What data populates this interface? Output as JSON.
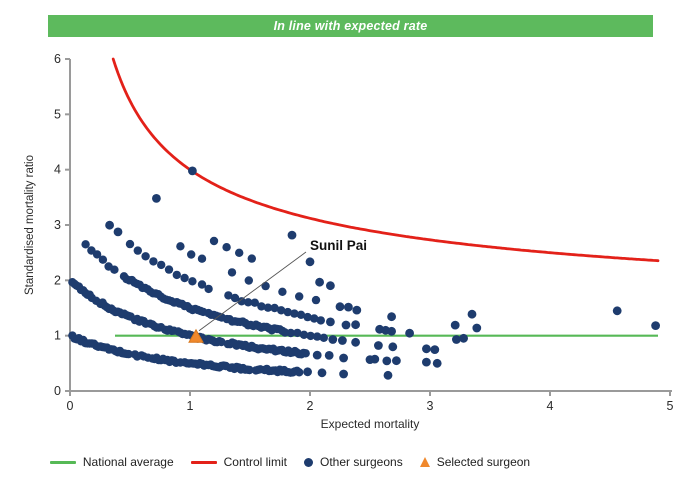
{
  "header": {
    "label": "In line with expected rate",
    "bg_color": "#5dba5d",
    "text_color": "#ffffff"
  },
  "chart_data": {
    "type": "scatter",
    "title": "",
    "xlabel": "Expected mortality",
    "ylabel": "Standardised mortality ratio",
    "xlim": [
      0,
      5
    ],
    "ylim": [
      0,
      6
    ],
    "x_ticks": [
      0,
      1,
      2,
      3,
      4,
      5
    ],
    "y_ticks": [
      0,
      1,
      2,
      3,
      4,
      5,
      6
    ],
    "grid": false,
    "legend_position": "bottom",
    "axis_color": "#9a9a9a",
    "tick_label_color": "#2b2b2b",
    "national_average": {
      "label": "National average",
      "y": 1,
      "x_start": 0.375,
      "x_end": 4.9,
      "color": "#56b956"
    },
    "control_limit": {
      "label": "Control limit",
      "formula": "y = 1 + 3/sqrt(x)",
      "a": 1,
      "b": 3,
      "x_start": 0.36,
      "x_end": 4.9,
      "color": "#e32119"
    },
    "other_surgeons": {
      "label": "Other surgeons",
      "color": "#1e3c6e",
      "point_radius": 4.2,
      "band_formula": "smr = deaths / (expected + 1)",
      "denominator_offset": 1,
      "bands": [
        {
          "deaths": 1,
          "runs": [
            [
              0.02,
              1.92,
              0.018
            ]
          ],
          "extra_x": [
            1.98,
            2.1,
            2.28,
            2.65
          ]
        },
        {
          "deaths": 2,
          "runs": [
            [
              0.02,
              1.97,
              0.018
            ]
          ],
          "extra_x": [
            2.06,
            2.16,
            2.28,
            2.5,
            2.54,
            2.64,
            2.72,
            2.97,
            3.06
          ]
        },
        {
          "deaths": 3,
          "runs": [
            [
              0.13,
              0.42,
              0.048
            ],
            [
              0.45,
              1.8,
              0.022
            ],
            [
              1.84,
              2.16,
              0.055
            ]
          ],
          "extra_x": [
            2.19,
            2.27,
            2.38,
            2.57,
            2.69,
            2.97,
            3.04
          ]
        },
        {
          "deaths": 4,
          "runs": [
            [
              0.5,
              1.05,
              0.065
            ],
            [
              1.1,
              2.1,
              0.055
            ]
          ],
          "extra_x": [
            0.33,
            0.4,
            2.17,
            2.3,
            2.38,
            2.58,
            2.63,
            2.68,
            2.83,
            3.22,
            3.28
          ]
        },
        {
          "deaths": 5,
          "runs": [
            [
              0.92,
              1.12,
              0.09
            ],
            [
              1.35,
              2.1,
              0.14
            ]
          ],
          "extra_x": [
            2.25,
            2.32,
            2.39,
            2.68,
            3.21,
            3.39
          ]
        },
        {
          "deaths": 6,
          "runs": [
            [
              1.2,
              1.52,
              0.105
            ]
          ],
          "extra_x": [
            0.72,
            2.08,
            2.17,
            3.35
          ]
        },
        {
          "deaths": 7,
          "runs": [],
          "extra_x": [
            2.0,
            4.88
          ]
        },
        {
          "deaths": 8,
          "runs": [],
          "extra_x": [
            1.02,
            1.85,
            4.56
          ]
        }
      ]
    },
    "selected_surgeon": {
      "label": "Selected surgeon",
      "name": "Sunil Pai",
      "expected": 1.05,
      "smr": 0.98,
      "color": "#f0882c",
      "edge_color": "#d9771b",
      "label_x": 2.0,
      "label_y": 2.62
    }
  },
  "legend": {
    "items": [
      {
        "swatch": "line",
        "source": "national_average",
        "label": "National average"
      },
      {
        "swatch": "line",
        "source": "control_limit",
        "label": "Control limit"
      },
      {
        "swatch": "dot",
        "source": "other_surgeons",
        "label": "Other surgeons"
      },
      {
        "swatch": "triangle",
        "source": "selected_surgeon",
        "label": "Selected surgeon"
      }
    ]
  }
}
